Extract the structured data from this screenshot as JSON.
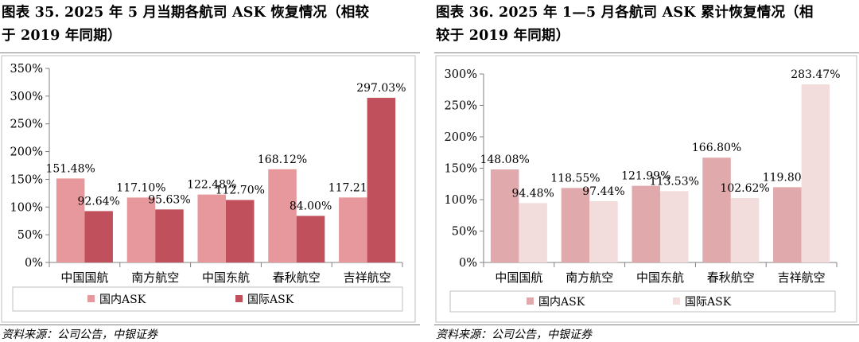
{
  "panels": [
    {
      "title_line1": "图表 35.   2025 年 5 月当期各航司 ASK 恢复情况（相较",
      "title_line2": "于 2019 年同期）",
      "source": "资料来源：公司公告，中银证券",
      "chart_data": {
        "type": "bar",
        "categories": [
          "中国国航",
          "南方航空",
          "中国东航",
          "春秋航空",
          "吉祥航空"
        ],
        "series": [
          {
            "name": "国内ASK",
            "values": [
              151.48,
              117.1,
              122.48,
              168.12,
              117.21
            ],
            "labels": [
              "151.48%",
              "117.10%",
              "122.48%",
              "168.12%",
              "117.21%"
            ],
            "color": "#e6989c"
          },
          {
            "name": "国际ASK",
            "values": [
              92.64,
              95.63,
              112.7,
              84.0,
              297.03
            ],
            "labels": [
              "92.64%",
              "95.63%",
              "112.70%",
              "84.00%",
              "297.03%"
            ],
            "color": "#c0505b"
          }
        ],
        "ylim": [
          0,
          350
        ],
        "yticks": [
          "0%",
          "50%",
          "100%",
          "150%",
          "200%",
          "250%",
          "300%",
          "350%"
        ],
        "legend_position": "bottom"
      }
    },
    {
      "title_line1": "图表 36.   2025 年 1—5 月各航司 ASK 累计恢复情况（相",
      "title_line2": "较于 2019 年同期）",
      "source": "资料来源：公司公告，中银证券",
      "chart_data": {
        "type": "bar",
        "categories": [
          "中国国航",
          "南方航空",
          "中国东航",
          "春秋航空",
          "吉祥航空"
        ],
        "series": [
          {
            "name": "国内ASK",
            "values": [
              148.08,
              118.55,
              121.99,
              166.8,
              119.8
            ],
            "labels": [
              "148.08%",
              "118.55%",
              "121.99%",
              "166.80%",
              "119.80%"
            ],
            "color": "#e0aaac"
          },
          {
            "name": "国际ASK",
            "values": [
              94.48,
              97.44,
              113.53,
              102.62,
              283.47
            ],
            "labels": [
              "94.48%",
              "97.44%",
              "113.53%",
              "102.62%",
              "283.47%"
            ],
            "color": "#f3dcdc"
          }
        ],
        "ylim": [
          0,
          300
        ],
        "yticks": [
          "0%",
          "50%",
          "100%",
          "150%",
          "200%",
          "250%",
          "300%"
        ],
        "legend_position": "bottom"
      }
    }
  ]
}
